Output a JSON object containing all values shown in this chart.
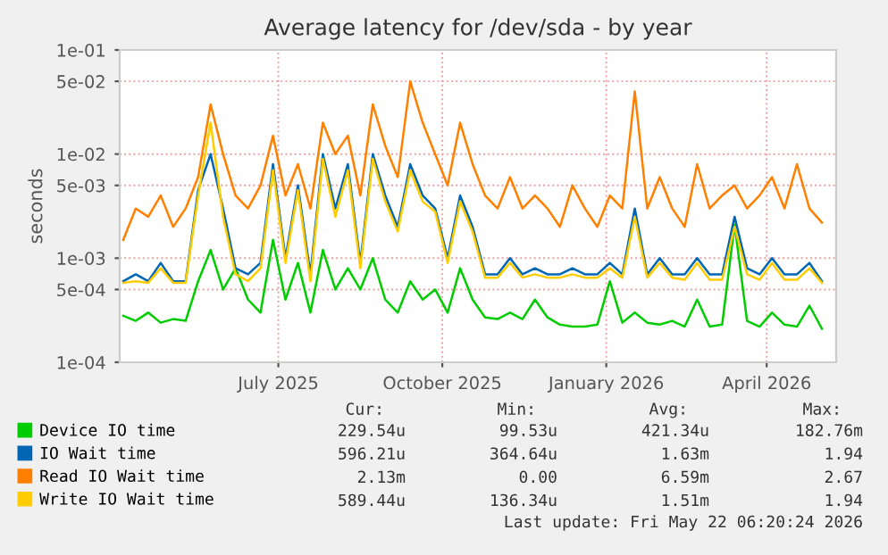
{
  "chart_data": {
    "type": "line",
    "title": "Average latency for /dev/sda - by year",
    "ylabel": "seconds",
    "x": [
      "2025-04-05",
      "2025-04-12",
      "2025-04-19",
      "2025-04-26",
      "2025-05-03",
      "2025-05-10",
      "2025-05-17",
      "2025-05-24",
      "2025-05-31",
      "2025-06-07",
      "2025-06-14",
      "2025-06-21",
      "2025-06-28",
      "2025-07-05",
      "2025-07-12",
      "2025-07-19",
      "2025-07-26",
      "2025-08-02",
      "2025-08-09",
      "2025-08-16",
      "2025-08-23",
      "2025-08-30",
      "2025-09-06",
      "2025-09-13",
      "2025-09-20",
      "2025-09-27",
      "2025-10-04",
      "2025-10-11",
      "2025-10-18",
      "2025-10-25",
      "2025-11-01",
      "2025-11-08",
      "2025-11-15",
      "2025-11-22",
      "2025-11-29",
      "2025-12-06",
      "2025-12-13",
      "2025-12-20",
      "2025-12-27",
      "2026-01-03",
      "2026-01-10",
      "2026-01-17",
      "2026-01-24",
      "2026-01-31",
      "2026-02-07",
      "2026-02-14",
      "2026-02-21",
      "2026-02-28",
      "2026-03-07",
      "2026-03-14",
      "2026-03-21",
      "2026-03-28",
      "2026-04-04",
      "2026-04-11",
      "2026-04-18",
      "2026-04-25",
      "2026-05-02"
    ],
    "series": [
      {
        "name": "Device IO time",
        "color": "#00cc00",
        "values": [
          0.00028,
          0.00025,
          0.0003,
          0.00024,
          0.00026,
          0.00025,
          0.0006,
          0.0012,
          0.0005,
          0.0008,
          0.0004,
          0.0003,
          0.0015,
          0.0004,
          0.0009,
          0.0003,
          0.0012,
          0.0005,
          0.0008,
          0.0005,
          0.001,
          0.0004,
          0.0003,
          0.0006,
          0.0004,
          0.0005,
          0.0003,
          0.0008,
          0.0004,
          0.00027,
          0.00026,
          0.0003,
          0.00026,
          0.0004,
          0.00027,
          0.00023,
          0.00022,
          0.00022,
          0.00023,
          0.0006,
          0.00024,
          0.0003,
          0.00024,
          0.00023,
          0.00025,
          0.00022,
          0.0004,
          0.00022,
          0.00023,
          0.0021,
          0.00025,
          0.00022,
          0.0003,
          0.00023,
          0.00022,
          0.00035,
          0.00021
        ]
      },
      {
        "name": "IO Wait time",
        "color": "#0066b3",
        "values": [
          0.0006,
          0.0007,
          0.0006,
          0.0009,
          0.0006,
          0.0006,
          0.0045,
          0.01,
          0.003,
          0.0008,
          0.0007,
          0.0009,
          0.008,
          0.001,
          0.005,
          0.0007,
          0.01,
          0.003,
          0.008,
          0.0009,
          0.01,
          0.004,
          0.002,
          0.008,
          0.004,
          0.003,
          0.001,
          0.004,
          0.002,
          0.0007,
          0.0007,
          0.001,
          0.0007,
          0.0008,
          0.0007,
          0.0007,
          0.0008,
          0.0007,
          0.0007,
          0.0009,
          0.0007,
          0.003,
          0.0007,
          0.001,
          0.0007,
          0.0007,
          0.001,
          0.0007,
          0.0007,
          0.0025,
          0.0008,
          0.0007,
          0.001,
          0.0007,
          0.0007,
          0.0009,
          0.0006
        ]
      },
      {
        "name": "Read IO Wait time",
        "color": "#ff8000",
        "values": [
          0.0015,
          0.003,
          0.0025,
          0.004,
          0.002,
          0.003,
          0.006,
          0.03,
          0.01,
          0.004,
          0.003,
          0.005,
          0.015,
          0.004,
          0.008,
          0.003,
          0.02,
          0.01,
          0.015,
          0.004,
          0.03,
          0.012,
          0.006,
          0.05,
          0.02,
          0.01,
          0.005,
          0.02,
          0.008,
          0.004,
          0.003,
          0.006,
          0.003,
          0.004,
          0.003,
          0.002,
          0.005,
          0.003,
          0.002,
          0.004,
          0.003,
          0.04,
          0.003,
          0.006,
          0.003,
          0.002,
          0.008,
          0.003,
          0.004,
          0.005,
          0.003,
          0.004,
          0.006,
          0.003,
          0.008,
          0.003,
          0.0022
        ]
      },
      {
        "name": "Write IO Wait time",
        "color": "#ffcc00",
        "values": [
          0.00058,
          0.0006,
          0.00058,
          0.0008,
          0.00058,
          0.00058,
          0.004,
          0.02,
          0.0025,
          0.0007,
          0.0006,
          0.0008,
          0.007,
          0.0009,
          0.0045,
          0.0006,
          0.009,
          0.0025,
          0.007,
          0.0008,
          0.009,
          0.0035,
          0.0018,
          0.007,
          0.0035,
          0.0028,
          0.0009,
          0.0035,
          0.0018,
          0.00065,
          0.00065,
          0.0009,
          0.00065,
          0.0007,
          0.00065,
          0.00065,
          0.0007,
          0.00065,
          0.00065,
          0.0008,
          0.00065,
          0.0025,
          0.00065,
          0.0009,
          0.00065,
          0.00062,
          0.0009,
          0.00062,
          0.00062,
          0.002,
          0.0007,
          0.00062,
          0.0009,
          0.00062,
          0.00062,
          0.0008,
          0.00058
        ]
      }
    ],
    "log": "y",
    "ylim": [
      0.0001,
      0.1
    ],
    "yticks": [
      {
        "value": 0.1,
        "label": "1e-01"
      },
      {
        "value": 0.05,
        "label": "5e-02"
      },
      {
        "value": 0.01,
        "label": "1e-02"
      },
      {
        "value": 0.005,
        "label": "5e-03"
      },
      {
        "value": 0.001,
        "label": "1e-03"
      },
      {
        "value": 0.0005,
        "label": "5e-04"
      },
      {
        "value": 0.0001,
        "label": "1e-04"
      }
    ],
    "xlim": [
      "2025-04-03",
      "2026-05-10"
    ],
    "xticks": [
      {
        "value": "2025-07-01",
        "label": "July 2025"
      },
      {
        "value": "2025-10-01",
        "label": "October 2025"
      },
      {
        "value": "2026-01-01",
        "label": "January 2026"
      },
      {
        "value": "2026-04-01",
        "label": "April 2026"
      }
    ],
    "grid": true,
    "legend": "bottom",
    "marker": "none",
    "line_style": "solid",
    "annotations": [
      "Cur:",
      "Min:",
      "Avg:",
      "Max:",
      "229.54u",
      "99.53u",
      "421.34u",
      "182.76m",
      "596.21u",
      "364.64u",
      "1.63m",
      "1.94",
      "2.13m",
      "0.00",
      "6.59m",
      "2.67",
      "589.44u",
      "136.34u",
      "1.51m",
      "1.94",
      "Last update: Fri May 22 06:20:24 2026"
    ]
  }
}
